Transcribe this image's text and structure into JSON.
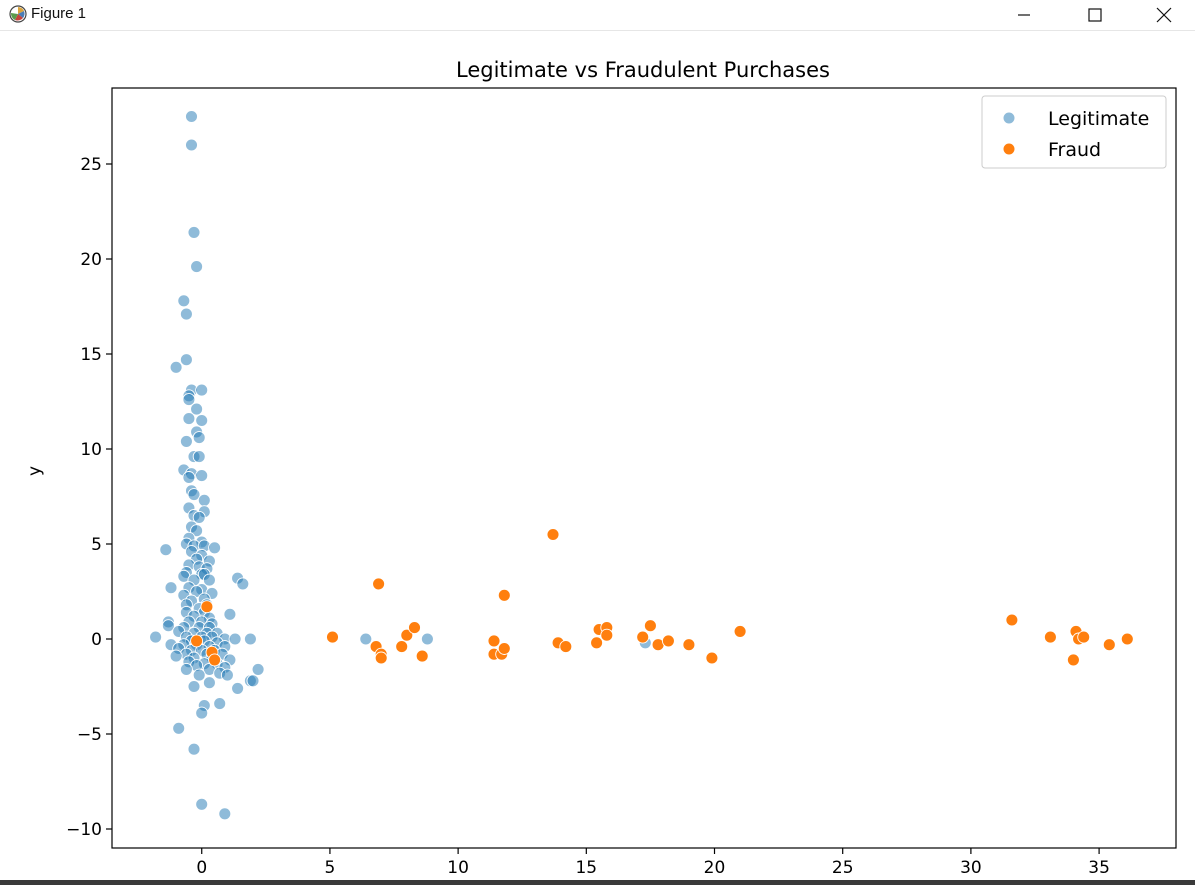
{
  "window": {
    "title": "Figure 1",
    "icons": [
      "matplotlib-icon",
      "minimize-icon",
      "maximize-icon",
      "close-icon"
    ]
  },
  "chart_data": {
    "type": "scatter",
    "title": "Legitimate vs Fraudulent Purchases",
    "xlabel": "",
    "ylabel": "y",
    "xlim": [
      -3.5,
      38
    ],
    "ylim": [
      -11,
      29
    ],
    "xticks": [
      0,
      5,
      10,
      15,
      20,
      25,
      30,
      35
    ],
    "yticks": [
      -10,
      -5,
      0,
      5,
      10,
      15,
      20,
      25
    ],
    "grid": false,
    "legend_position": "top-right",
    "series": [
      {
        "name": "Legitimate",
        "color": "#1f77b4",
        "alpha": 0.5,
        "points": [
          [
            -0.4,
            27.5
          ],
          [
            -0.4,
            26.0
          ],
          [
            -0.3,
            21.4
          ],
          [
            -0.2,
            19.6
          ],
          [
            -0.7,
            17.8
          ],
          [
            -0.6,
            17.1
          ],
          [
            -0.6,
            14.7
          ],
          [
            -1.0,
            14.3
          ],
          [
            -0.4,
            13.1
          ],
          [
            0.0,
            13.1
          ],
          [
            -0.5,
            12.8
          ],
          [
            -0.5,
            12.6
          ],
          [
            -0.2,
            12.1
          ],
          [
            -0.5,
            11.6
          ],
          [
            0.0,
            11.5
          ],
          [
            -0.2,
            10.9
          ],
          [
            -0.1,
            10.6
          ],
          [
            -0.6,
            10.4
          ],
          [
            -0.3,
            9.6
          ],
          [
            -0.1,
            9.6
          ],
          [
            -0.7,
            8.9
          ],
          [
            -0.4,
            8.7
          ],
          [
            0.0,
            8.6
          ],
          [
            -0.5,
            8.5
          ],
          [
            -0.4,
            7.8
          ],
          [
            -0.3,
            7.6
          ],
          [
            0.1,
            7.3
          ],
          [
            -0.5,
            6.9
          ],
          [
            0.1,
            6.7
          ],
          [
            -0.3,
            6.5
          ],
          [
            -0.1,
            6.4
          ],
          [
            -0.4,
            5.9
          ],
          [
            -0.2,
            5.7
          ],
          [
            -0.5,
            5.3
          ],
          [
            0.0,
            5.1
          ],
          [
            -0.6,
            5.0
          ],
          [
            -0.3,
            4.9
          ],
          [
            0.1,
            4.9
          ],
          [
            0.5,
            4.8
          ],
          [
            -1.4,
            4.7
          ],
          [
            -0.4,
            4.6
          ],
          [
            0.0,
            4.4
          ],
          [
            -0.2,
            4.2
          ],
          [
            0.3,
            4.1
          ],
          [
            -0.5,
            3.9
          ],
          [
            -0.1,
            3.8
          ],
          [
            0.2,
            3.7
          ],
          [
            -0.6,
            3.5
          ],
          [
            0.0,
            3.4
          ],
          [
            0.1,
            3.4
          ],
          [
            -0.7,
            3.3
          ],
          [
            1.4,
            3.2
          ],
          [
            -0.3,
            3.1
          ],
          [
            0.3,
            3.1
          ],
          [
            1.6,
            2.9
          ],
          [
            -1.2,
            2.7
          ],
          [
            -0.5,
            2.7
          ],
          [
            0.0,
            2.6
          ],
          [
            -0.2,
            2.5
          ],
          [
            0.4,
            2.4
          ],
          [
            -0.7,
            2.3
          ],
          [
            0.1,
            2.1
          ],
          [
            -0.4,
            2.0
          ],
          [
            -0.6,
            1.8
          ],
          [
            0.2,
            1.8
          ],
          [
            -0.1,
            1.6
          ],
          [
            -0.6,
            1.4
          ],
          [
            0.1,
            1.4
          ],
          [
            1.1,
            1.3
          ],
          [
            -0.3,
            1.2
          ],
          [
            0.3,
            1.1
          ],
          [
            -1.3,
            0.9
          ],
          [
            -0.5,
            0.9
          ],
          [
            0.0,
            0.9
          ],
          [
            0.4,
            0.8
          ],
          [
            -1.3,
            0.7
          ],
          [
            -0.7,
            0.6
          ],
          [
            -0.1,
            0.6
          ],
          [
            0.3,
            0.6
          ],
          [
            -0.9,
            0.4
          ],
          [
            -0.3,
            0.3
          ],
          [
            0.2,
            0.3
          ],
          [
            0.6,
            0.3
          ],
          [
            -1.8,
            0.1
          ],
          [
            -0.6,
            0.1
          ],
          [
            0.0,
            0.1
          ],
          [
            0.4,
            0.1
          ],
          [
            0.9,
            0.0
          ],
          [
            1.3,
            0.0
          ],
          [
            1.9,
            0.0
          ],
          [
            6.4,
            0.0
          ],
          [
            8.8,
            0.0
          ],
          [
            -0.4,
            -0.1
          ],
          [
            0.1,
            -0.1
          ],
          [
            0.6,
            -0.2
          ],
          [
            -1.2,
            -0.3
          ],
          [
            -0.7,
            -0.3
          ],
          [
            -0.2,
            -0.3
          ],
          [
            0.3,
            -0.4
          ],
          [
            0.9,
            -0.4
          ],
          [
            -0.9,
            -0.5
          ],
          [
            -0.4,
            -0.6
          ],
          [
            0.0,
            -0.6
          ],
          [
            0.5,
            -0.6
          ],
          [
            -0.6,
            -0.8
          ],
          [
            0.2,
            -0.8
          ],
          [
            0.8,
            -0.8
          ],
          [
            -1.0,
            -0.9
          ],
          [
            -0.3,
            -1.0
          ],
          [
            0.4,
            -1.0
          ],
          [
            1.1,
            -1.1
          ],
          [
            -0.5,
            -1.2
          ],
          [
            0.1,
            -1.3
          ],
          [
            0.6,
            -1.3
          ],
          [
            -0.2,
            -1.4
          ],
          [
            0.9,
            -1.5
          ],
          [
            -0.6,
            -1.6
          ],
          [
            0.3,
            -1.6
          ],
          [
            2.2,
            -1.6
          ],
          [
            0.7,
            -1.8
          ],
          [
            -0.1,
            -1.9
          ],
          [
            1.0,
            -1.9
          ],
          [
            1.9,
            -2.2
          ],
          [
            2.0,
            -2.2
          ],
          [
            0.3,
            -2.3
          ],
          [
            -0.3,
            -2.5
          ],
          [
            1.4,
            -2.6
          ],
          [
            0.1,
            -3.5
          ],
          [
            0.7,
            -3.4
          ],
          [
            0.0,
            -3.9
          ],
          [
            -0.9,
            -4.7
          ],
          [
            -0.3,
            -5.8
          ],
          [
            0.0,
            -8.7
          ],
          [
            0.9,
            -9.2
          ],
          [
            17.3,
            -0.2
          ]
        ]
      },
      {
        "name": "Fraud",
        "color": "#ff7f0e",
        "alpha": 1.0,
        "points": [
          [
            0.2,
            1.7
          ],
          [
            -0.2,
            -0.1
          ],
          [
            0.4,
            -0.7
          ],
          [
            0.5,
            -1.1
          ],
          [
            5.1,
            0.1
          ],
          [
            6.8,
            -0.4
          ],
          [
            6.9,
            2.9
          ],
          [
            7.0,
            -0.8
          ],
          [
            7.0,
            -1.0
          ],
          [
            7.8,
            -0.4
          ],
          [
            8.0,
            0.2
          ],
          [
            8.3,
            0.6
          ],
          [
            8.6,
            -0.9
          ],
          [
            11.4,
            -0.1
          ],
          [
            11.4,
            -0.8
          ],
          [
            11.7,
            -0.8
          ],
          [
            11.8,
            -0.5
          ],
          [
            11.8,
            2.3
          ],
          [
            13.7,
            5.5
          ],
          [
            13.9,
            -0.2
          ],
          [
            14.2,
            -0.4
          ],
          [
            15.4,
            -0.2
          ],
          [
            15.5,
            0.5
          ],
          [
            15.8,
            0.6
          ],
          [
            15.8,
            0.2
          ],
          [
            17.2,
            0.1
          ],
          [
            17.5,
            0.7
          ],
          [
            17.8,
            -0.3
          ],
          [
            18.2,
            -0.1
          ],
          [
            19.0,
            -0.3
          ],
          [
            19.9,
            -1.0
          ],
          [
            21.0,
            0.4
          ],
          [
            31.6,
            1.0
          ],
          [
            33.1,
            0.1
          ],
          [
            34.0,
            -1.1
          ],
          [
            34.1,
            0.4
          ],
          [
            34.2,
            0.0
          ],
          [
            34.4,
            0.1
          ],
          [
            35.4,
            -0.3
          ],
          [
            36.1,
            0.0
          ]
        ]
      }
    ]
  }
}
